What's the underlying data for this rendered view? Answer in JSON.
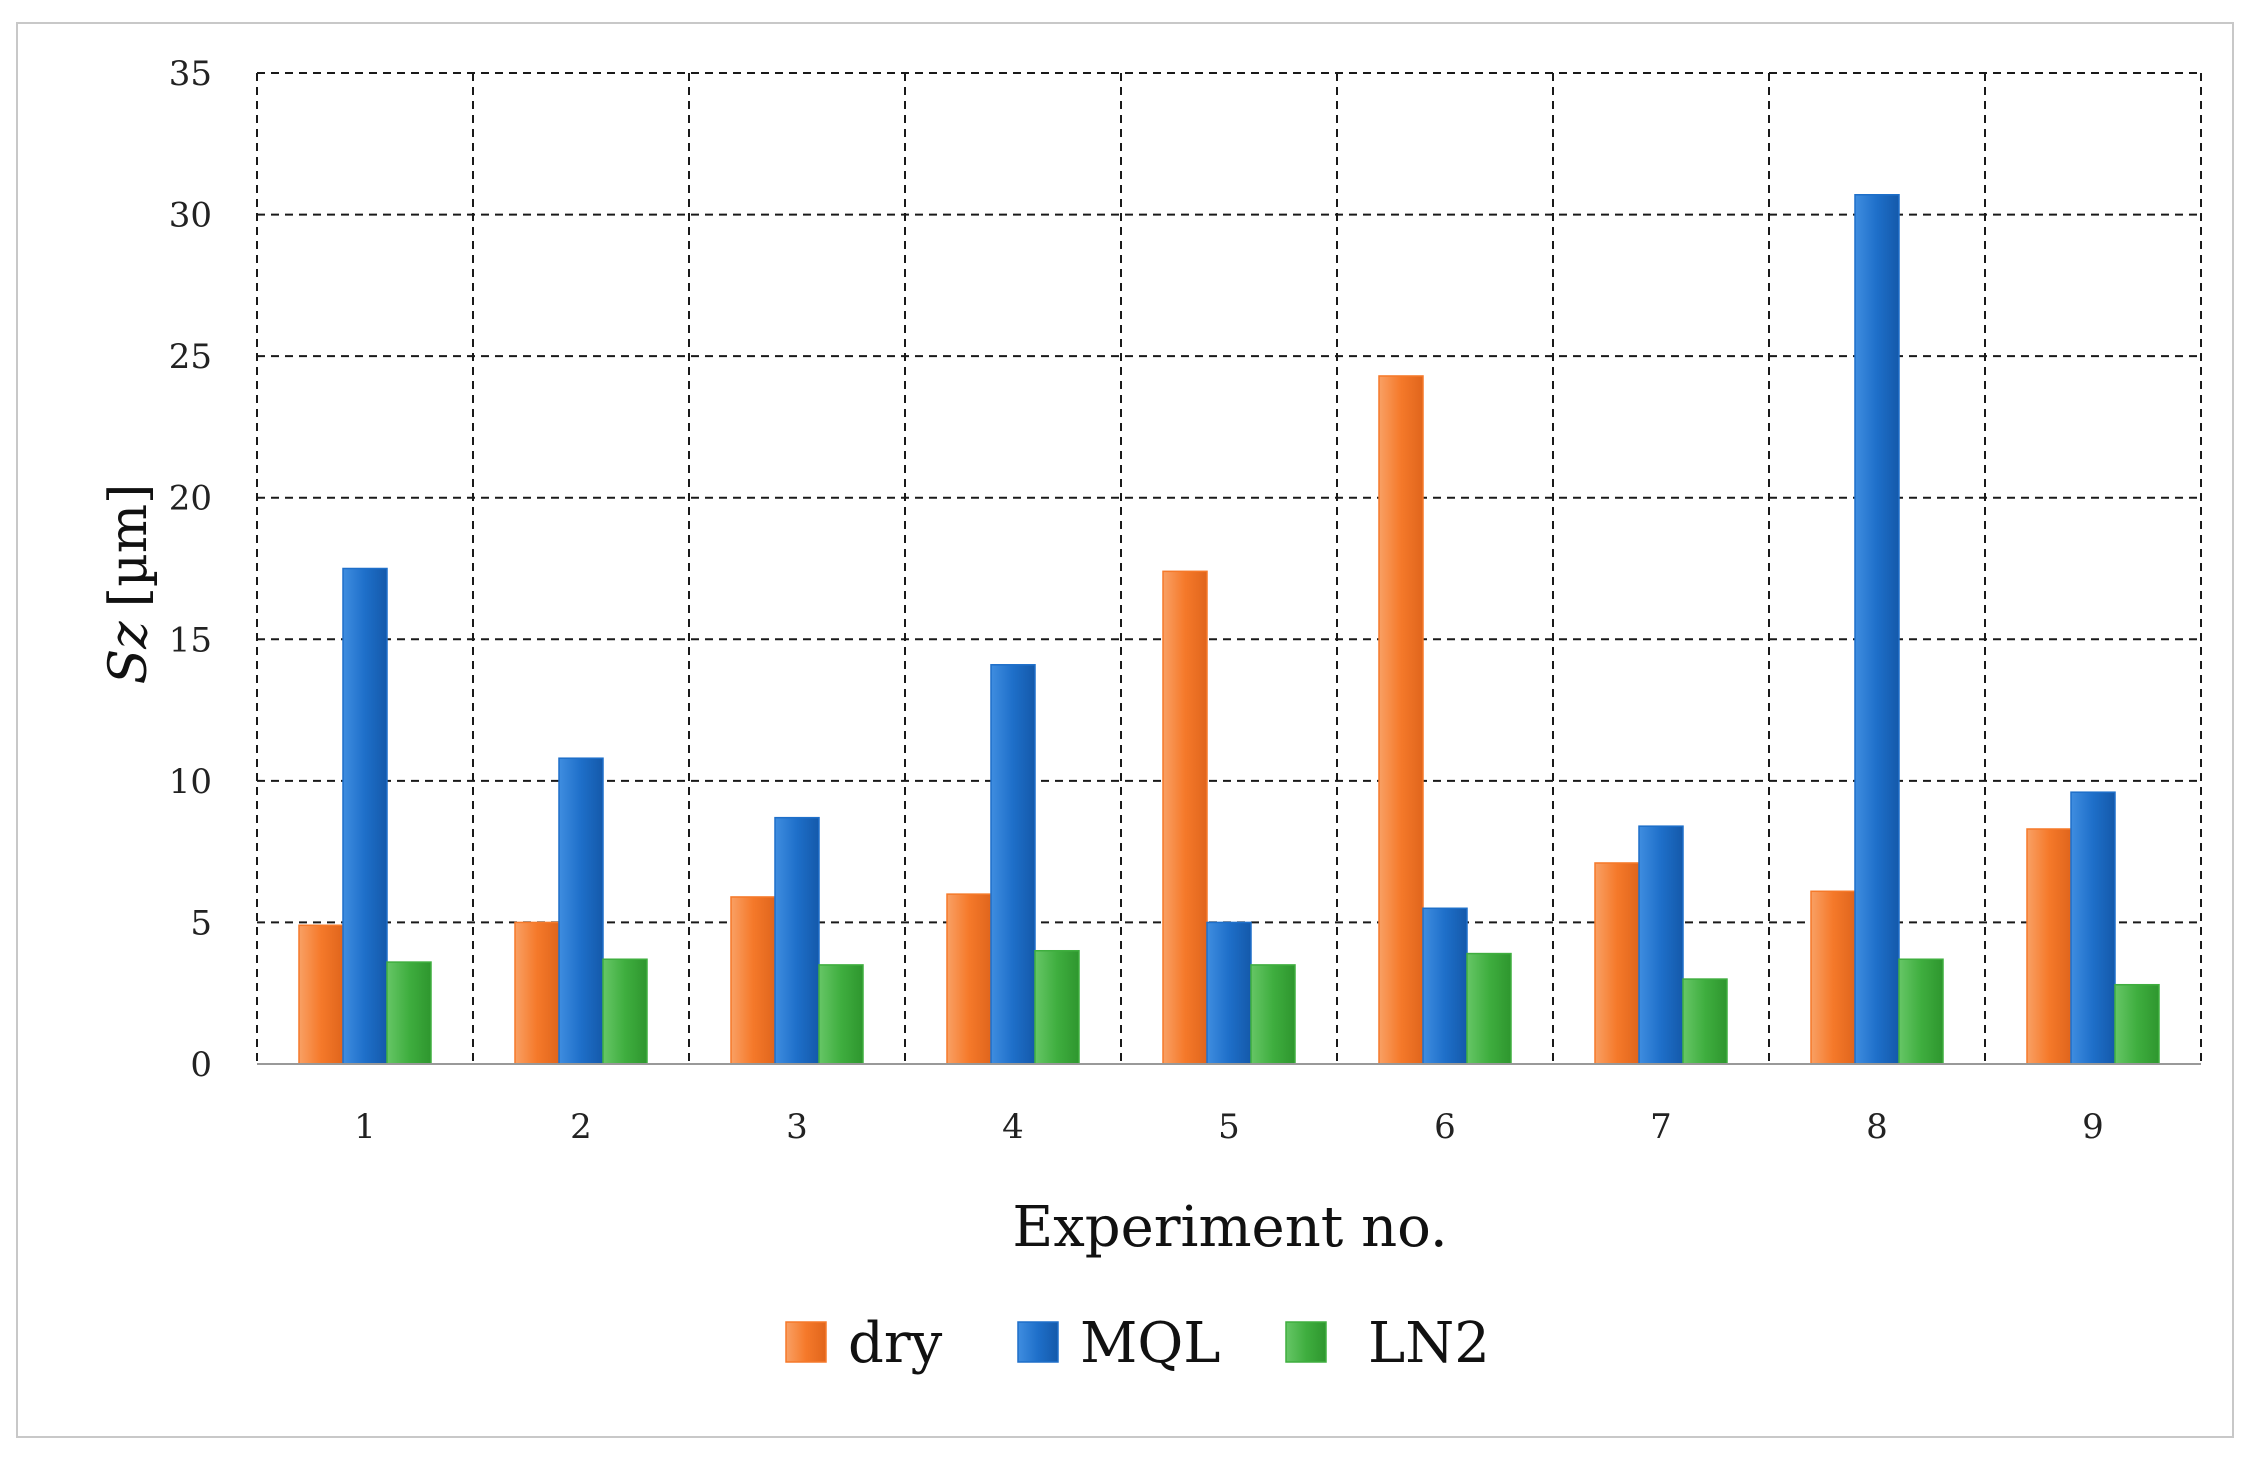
{
  "chart_data": {
    "type": "bar",
    "title": "",
    "xlabel": "Experiment no.",
    "ylabel": "Sz [µm]",
    "ylabel_italic_part": "Sz",
    "ylabel_unit_part": "[µm]",
    "ylim": [
      0,
      35
    ],
    "yticks": [
      0,
      5,
      10,
      15,
      20,
      25,
      30,
      35
    ],
    "grid": true,
    "legend_position": "bottom",
    "categories": [
      "1",
      "2",
      "3",
      "4",
      "5",
      "6",
      "7",
      "8",
      "9"
    ],
    "series": [
      {
        "name": "dry",
        "color": "#f5792a",
        "values": [
          4.9,
          5.0,
          5.9,
          6.0,
          17.4,
          24.3,
          7.1,
          6.1,
          8.3
        ]
      },
      {
        "name": "MQL",
        "color": "#1e6fc9",
        "values": [
          17.5,
          10.8,
          8.7,
          14.1,
          5.0,
          5.5,
          8.4,
          30.7,
          9.6
        ]
      },
      {
        "name": "LN2",
        "color": "#3fae3f",
        "values": [
          3.6,
          3.7,
          3.5,
          4.0,
          3.5,
          3.9,
          3.0,
          3.7,
          2.8
        ]
      }
    ]
  }
}
